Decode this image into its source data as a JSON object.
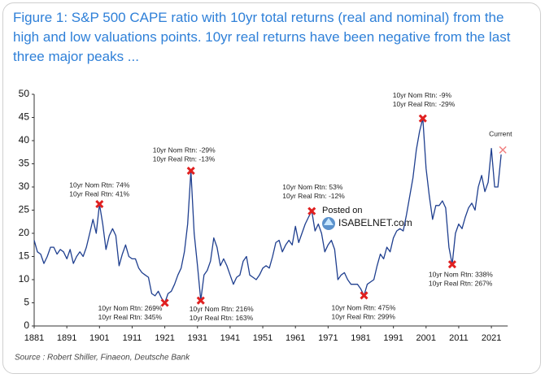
{
  "chart_data": {
    "type": "line",
    "title": "Figure 1: S&P 500 CAPE ratio with 10yr total returns (real and nominal) from the high and low valuations points. 10yr real returns have been negative from the last three major peaks ...",
    "source": "Source : Robert Shiller, Finaeon, Deutsche Bank",
    "watermark": [
      "Posted on",
      "ISABELNET.com"
    ],
    "color": "#1f3f8f",
    "x": [
      1881,
      1882,
      1883,
      1884,
      1885,
      1886,
      1887,
      1888,
      1889,
      1890,
      1891,
      1892,
      1893,
      1894,
      1895,
      1896,
      1897,
      1898,
      1899,
      1900,
      1901,
      1902,
      1903,
      1904,
      1905,
      1906,
      1907,
      1908,
      1909,
      1910,
      1911,
      1912,
      1913,
      1914,
      1915,
      1916,
      1917,
      1918,
      1919,
      1920,
      1921,
      1922,
      1923,
      1924,
      1925,
      1926,
      1927,
      1928,
      1929,
      1930,
      1931,
      1932,
      1933,
      1934,
      1935,
      1936,
      1937,
      1938,
      1939,
      1940,
      1941,
      1942,
      1943,
      1944,
      1945,
      1946,
      1947,
      1948,
      1949,
      1950,
      1951,
      1952,
      1953,
      1954,
      1955,
      1956,
      1957,
      1958,
      1959,
      1960,
      1961,
      1962,
      1963,
      1964,
      1965,
      1966,
      1967,
      1968,
      1969,
      1970,
      1971,
      1972,
      1973,
      1974,
      1975,
      1976,
      1977,
      1978,
      1979,
      1980,
      1981,
      1982,
      1983,
      1984,
      1985,
      1986,
      1987,
      1988,
      1989,
      1990,
      1991,
      1992,
      1993,
      1994,
      1995,
      1996,
      1997,
      1998,
      1999,
      2000,
      2001,
      2002,
      2003,
      2004,
      2005,
      2006,
      2007,
      2008,
      2009,
      2010,
      2011,
      2012,
      2013,
      2014,
      2015,
      2016,
      2017,
      2018,
      2019,
      2020,
      2021,
      2022,
      2023,
      2024
    ],
    "values": [
      18.5,
      16,
      15.5,
      13.5,
      15,
      17,
      17,
      15.5,
      16.5,
      16,
      14.5,
      16.5,
      13.5,
      15,
      16,
      15,
      17,
      20,
      23,
      20,
      26.3,
      22,
      16.5,
      19.5,
      21,
      19.5,
      13,
      15.5,
      17.5,
      15,
      14.5,
      14.5,
      12.5,
      11.5,
      11,
      10.5,
      7,
      6.5,
      7.5,
      6,
      5,
      7,
      7.5,
      9,
      11,
      12.5,
      16,
      22,
      33.5,
      20,
      13,
      5.5,
      11,
      12,
      14,
      19,
      17,
      13,
      14.5,
      13,
      11,
      9,
      10.5,
      11,
      14,
      15,
      11,
      10.5,
      10,
      11,
      12.5,
      13,
      12.5,
      15,
      18,
      18.5,
      16,
      17.5,
      18.5,
      17.5,
      21.5,
      18,
      20,
      22,
      23.5,
      24.8,
      20.5,
      22,
      20,
      16,
      17.5,
      18.5,
      16.5,
      10,
      11,
      11.5,
      10,
      9,
      9,
      9,
      8,
      6.6,
      9,
      9.5,
      10,
      13,
      15.5,
      14.5,
      17,
      16,
      19,
      20.5,
      21,
      20.5,
      24,
      28,
      32,
      38,
      42,
      44.8,
      34,
      28,
      23,
      26,
      26,
      27,
      25.5,
      17,
      13.3,
      20,
      22,
      21,
      23.5,
      25.5,
      26.5,
      25,
      30,
      32.5,
      29,
      31,
      38.3,
      30,
      30,
      37
    ],
    "markers": [
      {
        "x": 1901,
        "y": 26.3,
        "color": "#e02020",
        "labels": [
          "10yr Nom Rtn: 74%",
          "10yr Real Rtn: 41%"
        ]
      },
      {
        "x": 1921,
        "y": 5,
        "color": "#e02020",
        "labels": [
          "10yr Nom Rtn: 269%",
          "10yr Real Rtn: 345%"
        ]
      },
      {
        "x": 1929,
        "y": 33.5,
        "color": "#e02020",
        "labels": [
          "10yr Nom Rtn: -29%",
          "10yr Real Rtn: -13%"
        ]
      },
      {
        "x": 1932,
        "y": 5.5,
        "color": "#e02020",
        "labels": [
          "10yr Nom Rtn: 216%",
          "10yr Real Rtn: 163%"
        ]
      },
      {
        "x": 1966,
        "y": 24.8,
        "color": "#e02020",
        "labels": [
          "10yr Nom Rtn: 53%",
          "10yr Real Rtn: -12%"
        ]
      },
      {
        "x": 1982,
        "y": 6.6,
        "color": "#e02020",
        "labels": [
          "10yr Nom Rtn: 475%",
          "10yr Real Rtn: 299%"
        ]
      },
      {
        "x": 2000,
        "y": 44.8,
        "color": "#e02020",
        "labels": [
          "10yr Nom Rtn: -9%",
          "10yr Real Rtn: -29%"
        ]
      },
      {
        "x": 2009,
        "y": 13.3,
        "color": "#e02020",
        "labels": [
          "10yr Nom Rtn: 338%",
          "10yr Real Rtn: 267%"
        ]
      },
      {
        "x": 2024.5,
        "y": 38,
        "color": "#f08080",
        "labels": [
          "Current"
        ]
      }
    ],
    "xlim": [
      1881,
      2026
    ],
    "xticks": [
      1881,
      1891,
      1901,
      1911,
      1921,
      1931,
      1941,
      1951,
      1961,
      1971,
      1981,
      1991,
      2001,
      2011,
      2021
    ],
    "ylim": [
      0,
      50
    ],
    "yticks": [
      0,
      5,
      10,
      15,
      20,
      25,
      30,
      35,
      40,
      45,
      50
    ]
  }
}
